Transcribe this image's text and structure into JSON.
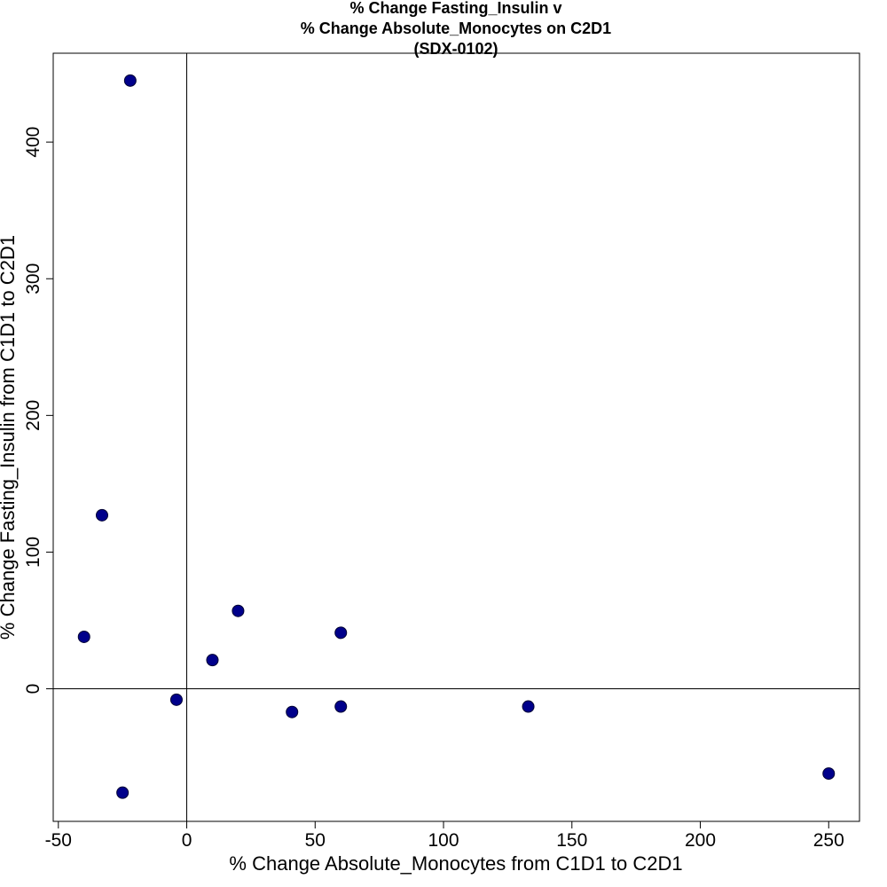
{
  "chart_data": {
    "type": "scatter",
    "title_lines": [
      "% Change Fasting_Insulin v",
      "% Change Absolute_Monocytes on C2D1",
      "(SDX-0102)"
    ],
    "xlabel": "% Change Absolute_Monocytes from C1D1 to C2D1",
    "ylabel": "% Change Fasting_Insulin from C1D1 to C2D1",
    "xlim": [
      -52,
      262
    ],
    "ylim": [
      -97,
      465
    ],
    "xticks": [
      -50,
      0,
      50,
      100,
      150,
      200,
      250
    ],
    "yticks": [
      0,
      100,
      200,
      300,
      400
    ],
    "reference_lines": {
      "x": 0,
      "y": 0
    },
    "grid": false,
    "marker_color": "#00008b",
    "points": [
      {
        "x": -22,
        "y": 445
      },
      {
        "x": -33,
        "y": 127
      },
      {
        "x": -40,
        "y": 38
      },
      {
        "x": -25,
        "y": -76
      },
      {
        "x": -4,
        "y": -8
      },
      {
        "x": 10,
        "y": 21
      },
      {
        "x": 20,
        "y": 57
      },
      {
        "x": 41,
        "y": -17
      },
      {
        "x": 60,
        "y": 41
      },
      {
        "x": 60,
        "y": -13
      },
      {
        "x": 133,
        "y": -13
      },
      {
        "x": 250,
        "y": -62
      }
    ]
  }
}
